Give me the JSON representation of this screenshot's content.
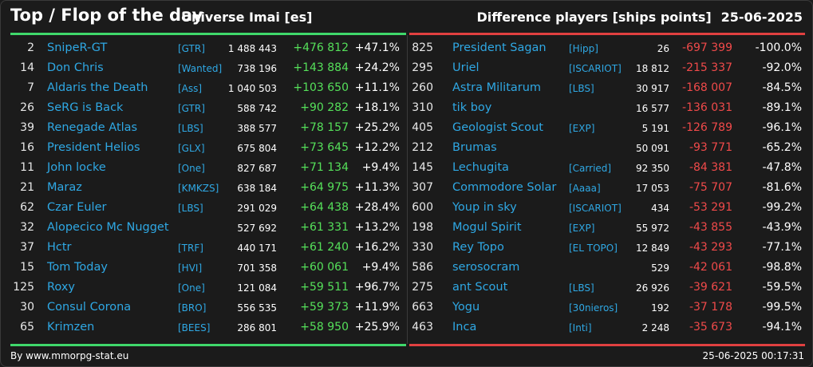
{
  "header": {
    "title": "Top / Flop of the day",
    "universe": "Universe Imai [es]",
    "metric": "Difference players [ships points]",
    "date": "25-06-2025"
  },
  "colors": {
    "positive": "#55e05a",
    "negative": "#f04a4a",
    "name": "#2fa8e4",
    "top_rule": "#3fd86b",
    "flop_rule": "#e04040"
  },
  "top": [
    {
      "rank": "2",
      "name": "SnipeR-GT",
      "ally": "[GTR]",
      "points": "1 488 443",
      "diff": "+476 812",
      "pct": "+47.1%"
    },
    {
      "rank": "14",
      "name": "Don Chris",
      "ally": "[Wanted]",
      "points": "738 196",
      "diff": "+143 884",
      "pct": "+24.2%"
    },
    {
      "rank": "7",
      "name": "Aldaris the Death",
      "ally": "[Ass]",
      "points": "1 040 503",
      "diff": "+103 650",
      "pct": "+11.1%"
    },
    {
      "rank": "26",
      "name": "SeRG is Back",
      "ally": "[GTR]",
      "points": "588 742",
      "diff": "+90 282",
      "pct": "+18.1%"
    },
    {
      "rank": "39",
      "name": "Renegade Atlas",
      "ally": "[LBS]",
      "points": "388 577",
      "diff": "+78 157",
      "pct": "+25.2%"
    },
    {
      "rank": "16",
      "name": "President Helios",
      "ally": "[GLX]",
      "points": "675 804",
      "diff": "+73 645",
      "pct": "+12.2%"
    },
    {
      "rank": "11",
      "name": "John locke",
      "ally": "[One]",
      "points": "827 687",
      "diff": "+71 134",
      "pct": "+9.4%"
    },
    {
      "rank": "21",
      "name": "Maraz",
      "ally": "[KMKZS]",
      "points": "638 184",
      "diff": "+64 975",
      "pct": "+11.3%"
    },
    {
      "rank": "62",
      "name": "Czar Euler",
      "ally": "[LBS]",
      "points": "291 029",
      "diff": "+64 438",
      "pct": "+28.4%"
    },
    {
      "rank": "32",
      "name": "Alopecico Mc Nugget",
      "ally": "",
      "points": "527 692",
      "diff": "+61 331",
      "pct": "+13.2%"
    },
    {
      "rank": "37",
      "name": "Hctr",
      "ally": "[TRF]",
      "points": "440 171",
      "diff": "+61 240",
      "pct": "+16.2%"
    },
    {
      "rank": "15",
      "name": "Tom Today",
      "ally": "[HVI]",
      "points": "701 358",
      "diff": "+60 061",
      "pct": "+9.4%"
    },
    {
      "rank": "125",
      "name": "Roxy",
      "ally": "[One]",
      "points": "121 084",
      "diff": "+59 511",
      "pct": "+96.7%"
    },
    {
      "rank": "30",
      "name": "Consul Corona",
      "ally": "[BRO]",
      "points": "556 535",
      "diff": "+59 373",
      "pct": "+11.9%"
    },
    {
      "rank": "65",
      "name": "Krimzen",
      "ally": "[BEES]",
      "points": "286 801",
      "diff": "+58 950",
      "pct": "+25.9%"
    }
  ],
  "flop": [
    {
      "rank": "825",
      "name": "President Sagan",
      "ally": "[Hipp]",
      "points": "26",
      "diff": "-697 399",
      "pct": "-100.0%"
    },
    {
      "rank": "295",
      "name": "Uriel",
      "ally": "[ISCARIOT]",
      "points": "18 812",
      "diff": "-215 337",
      "pct": "-92.0%"
    },
    {
      "rank": "260",
      "name": "Astra Militarum",
      "ally": "[LBS]",
      "points": "30 917",
      "diff": "-168 007",
      "pct": "-84.5%"
    },
    {
      "rank": "310",
      "name": "tik boy",
      "ally": "",
      "points": "16 577",
      "diff": "-136 031",
      "pct": "-89.1%"
    },
    {
      "rank": "405",
      "name": "Geologist Scout",
      "ally": "[EXP]",
      "points": "5 191",
      "diff": "-126 789",
      "pct": "-96.1%"
    },
    {
      "rank": "212",
      "name": "Brumas",
      "ally": "",
      "points": "50 091",
      "diff": "-93 771",
      "pct": "-65.2%"
    },
    {
      "rank": "145",
      "name": "Lechugita",
      "ally": "[Carried]",
      "points": "92 350",
      "diff": "-84 381",
      "pct": "-47.8%"
    },
    {
      "rank": "307",
      "name": "Commodore Solar",
      "ally": "[Aaaa]",
      "points": "17 053",
      "diff": "-75 707",
      "pct": "-81.6%"
    },
    {
      "rank": "600",
      "name": "Youp in sky",
      "ally": "[ISCARIOT]",
      "points": "434",
      "diff": "-53 291",
      "pct": "-99.2%"
    },
    {
      "rank": "198",
      "name": "Mogul Spirit",
      "ally": "[EXP]",
      "points": "55 972",
      "diff": "-43 855",
      "pct": "-43.9%"
    },
    {
      "rank": "330",
      "name": "Rey Topo",
      "ally": "[EL TOPO]",
      "points": "12 849",
      "diff": "-43 293",
      "pct": "-77.1%"
    },
    {
      "rank": "586",
      "name": "serosocram",
      "ally": "",
      "points": "529",
      "diff": "-42 061",
      "pct": "-98.8%"
    },
    {
      "rank": "275",
      "name": "ant Scout",
      "ally": "[LBS]",
      "points": "26 926",
      "diff": "-39 621",
      "pct": "-59.5%"
    },
    {
      "rank": "663",
      "name": "Yogu",
      "ally": "[30nieros]",
      "points": "192",
      "diff": "-37 178",
      "pct": "-99.5%"
    },
    {
      "rank": "463",
      "name": "Inca",
      "ally": "[Inti]",
      "points": "2 248",
      "diff": "-35 673",
      "pct": "-94.1%"
    }
  ],
  "footer": {
    "credit": "By www.mmorpg-stat.eu",
    "timestamp": "25-06-2025 00:17:31"
  }
}
